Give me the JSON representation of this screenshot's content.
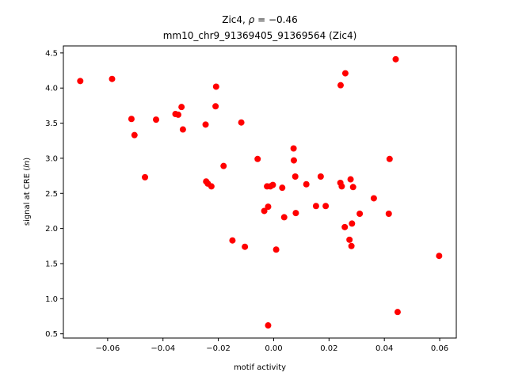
{
  "chart_data": {
    "type": "scatter",
    "title": "Zic4, ρ = −0.46",
    "title_prefix": "Zic4, ",
    "title_rho": "ρ",
    "title_suffix": " = −0.46",
    "subtitle": "mm10_chr9_91369405_91369564 (Zic4)",
    "xlabel": "motif activity",
    "ylabel_prefix": "signal at CRE (",
    "ylabel_italic": "ln",
    "ylabel_suffix": ")",
    "xlim": [
      -0.076,
      0.066
    ],
    "ylim": [
      0.44,
      4.6
    ],
    "xticks": [
      -0.06,
      -0.04,
      -0.02,
      0.0,
      0.02,
      0.04,
      0.06
    ],
    "xtick_labels": [
      "−0.06",
      "−0.04",
      "−0.02",
      "0.00",
      "0.02",
      "0.04",
      "0.06"
    ],
    "yticks": [
      0.5,
      1.0,
      1.5,
      2.0,
      2.5,
      3.0,
      3.5,
      4.0,
      4.5
    ],
    "ytick_labels": [
      "0.5",
      "1.0",
      "1.5",
      "2.0",
      "2.5",
      "3.0",
      "3.5",
      "4.0",
      "4.5"
    ],
    "grid": false,
    "marker_color": "#ff0000",
    "points": [
      [
        -0.0699,
        4.1
      ],
      [
        -0.0584,
        4.13
      ],
      [
        -0.0514,
        3.56
      ],
      [
        -0.0503,
        3.33
      ],
      [
        -0.0465,
        2.73
      ],
      [
        -0.0425,
        3.55
      ],
      [
        -0.0355,
        3.63
      ],
      [
        -0.0345,
        3.62
      ],
      [
        -0.0333,
        3.73
      ],
      [
        -0.0328,
        3.41
      ],
      [
        -0.0246,
        3.48
      ],
      [
        -0.0244,
        2.67
      ],
      [
        -0.0238,
        2.64
      ],
      [
        -0.0225,
        2.6
      ],
      [
        -0.021,
        3.74
      ],
      [
        -0.0208,
        4.02
      ],
      [
        -0.0117,
        3.51
      ],
      [
        -0.0181,
        2.89
      ],
      [
        -0.0149,
        1.83
      ],
      [
        -0.0104,
        1.74
      ],
      [
        -0.0058,
        2.99
      ],
      [
        -0.0034,
        2.25
      ],
      [
        -0.0024,
        2.6
      ],
      [
        -0.002,
        2.31
      ],
      [
        -0.0012,
        2.6
      ],
      [
        -0.0003,
        2.62
      ],
      [
        0.0009,
        1.7
      ],
      [
        0.0031,
        2.58
      ],
      [
        0.0038,
        2.16
      ],
      [
        0.0072,
        3.14
      ],
      [
        0.0073,
        2.97
      ],
      [
        0.0078,
        2.74
      ],
      [
        0.008,
        2.22
      ],
      [
        0.0118,
        2.63
      ],
      [
        0.0153,
        2.32
      ],
      [
        0.017,
        2.74
      ],
      [
        0.0188,
        2.32
      ],
      [
        0.0241,
        2.65
      ],
      [
        0.0246,
        2.6
      ],
      [
        0.0242,
        4.04
      ],
      [
        0.0259,
        4.21
      ],
      [
        0.0257,
        2.02
      ],
      [
        0.0274,
        1.84
      ],
      [
        0.0278,
        2.7
      ],
      [
        0.0281,
        1.75
      ],
      [
        0.0283,
        2.07
      ],
      [
        0.0287,
        2.59
      ],
      [
        0.0311,
        2.21
      ],
      [
        0.0362,
        2.43
      ],
      [
        0.0416,
        2.21
      ],
      [
        0.0419,
        2.99
      ],
      [
        0.0441,
        4.41
      ],
      [
        0.0448,
        0.81
      ],
      [
        0.0598,
        1.61
      ],
      [
        -0.002,
        0.62
      ]
    ]
  }
}
